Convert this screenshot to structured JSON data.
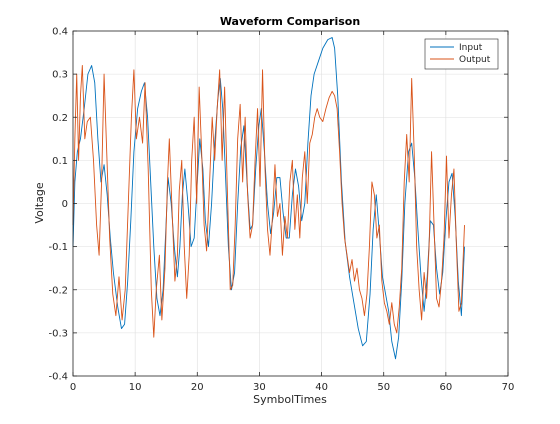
{
  "chart_data": {
    "type": "line",
    "title": "Waveform Comparison",
    "xlabel": "SymbolTimes",
    "ylabel": "Voltage",
    "xlim": [
      0,
      70
    ],
    "ylim": [
      -0.4,
      0.4
    ],
    "xticks": [
      0,
      10,
      20,
      30,
      40,
      50,
      60,
      70
    ],
    "xtick_labels": [
      "0",
      "10",
      "20",
      "30",
      "40",
      "50",
      "60",
      "70"
    ],
    "yticks": [
      -0.4,
      -0.3,
      -0.2,
      -0.1,
      0,
      0.1,
      0.2,
      0.3,
      0.4
    ],
    "ytick_labels": [
      "-0.4",
      "-0.3",
      "-0.2",
      "-0.1",
      "0",
      "0.1",
      "0.2",
      "0.3",
      "0.4"
    ],
    "grid": true,
    "legend_position": "top-right",
    "series": [
      {
        "name": "Input",
        "color": "#0072BD",
        "points": [
          [
            0,
            -0.1
          ],
          [
            0.3,
            0.05
          ],
          [
            0.7,
            0.12
          ],
          [
            1.2,
            0.15
          ],
          [
            1.8,
            0.22
          ],
          [
            2.4,
            0.3
          ],
          [
            3.0,
            0.32
          ],
          [
            3.5,
            0.28
          ],
          [
            4.0,
            0.15
          ],
          [
            4.5,
            0.05
          ],
          [
            5.0,
            0.09
          ],
          [
            5.5,
            0.02
          ],
          [
            6.0,
            -0.08
          ],
          [
            6.5,
            -0.16
          ],
          [
            7.2,
            -0.24
          ],
          [
            7.8,
            -0.29
          ],
          [
            8.3,
            -0.28
          ],
          [
            8.8,
            -0.18
          ],
          [
            9.3,
            -0.04
          ],
          [
            9.8,
            0.12
          ],
          [
            10.4,
            0.22
          ],
          [
            11.0,
            0.26
          ],
          [
            11.5,
            0.28
          ],
          [
            12.0,
            0.2
          ],
          [
            12.5,
            0.05
          ],
          [
            13.0,
            -0.1
          ],
          [
            13.5,
            -0.22
          ],
          [
            14.0,
            -0.26
          ],
          [
            14.5,
            -0.2
          ],
          [
            15.0,
            -0.04
          ],
          [
            15.3,
            0.06
          ],
          [
            15.8,
            0.0
          ],
          [
            16.3,
            -0.1
          ],
          [
            16.8,
            -0.17
          ],
          [
            17.2,
            -0.1
          ],
          [
            17.6,
            0.02
          ],
          [
            18.0,
            0.08
          ],
          [
            18.5,
            0.0
          ],
          [
            19.0,
            -0.1
          ],
          [
            19.5,
            -0.08
          ],
          [
            20.0,
            0.05
          ],
          [
            20.4,
            0.15
          ],
          [
            20.9,
            0.08
          ],
          [
            21.3,
            -0.04
          ],
          [
            21.8,
            -0.1
          ],
          [
            22.3,
            0.0
          ],
          [
            22.8,
            0.14
          ],
          [
            23.3,
            0.24
          ],
          [
            23.7,
            0.29
          ],
          [
            24.1,
            0.22
          ],
          [
            24.5,
            0.08
          ],
          [
            25.0,
            -0.1
          ],
          [
            25.5,
            -0.2
          ],
          [
            26.0,
            -0.16
          ],
          [
            26.5,
            0.0
          ],
          [
            27.0,
            0.13
          ],
          [
            27.5,
            0.18
          ],
          [
            28.0,
            0.05
          ],
          [
            28.5,
            -0.06
          ],
          [
            28.9,
            -0.05
          ],
          [
            29.4,
            0.08
          ],
          [
            29.9,
            0.18
          ],
          [
            30.3,
            0.22
          ],
          [
            30.8,
            0.12
          ],
          [
            31.3,
            0.0
          ],
          [
            31.8,
            -0.07
          ],
          [
            32.3,
            -0.02
          ],
          [
            32.8,
            0.06
          ],
          [
            33.3,
            0.06
          ],
          [
            33.8,
            -0.02
          ],
          [
            34.3,
            -0.08
          ],
          [
            34.8,
            -0.08
          ],
          [
            35.3,
            0.02
          ],
          [
            35.8,
            0.08
          ],
          [
            36.3,
            0.04
          ],
          [
            36.8,
            -0.04
          ],
          [
            37.3,
            0.0
          ],
          [
            37.8,
            0.14
          ],
          [
            38.3,
            0.25
          ],
          [
            38.8,
            0.3
          ],
          [
            39.5,
            0.33
          ],
          [
            40.2,
            0.36
          ],
          [
            41.0,
            0.38
          ],
          [
            41.7,
            0.385
          ],
          [
            42.1,
            0.36
          ],
          [
            42.6,
            0.25
          ],
          [
            43.2,
            0.05
          ],
          [
            43.8,
            -0.09
          ],
          [
            44.5,
            -0.17
          ],
          [
            45.2,
            -0.23
          ],
          [
            45.9,
            -0.29
          ],
          [
            46.6,
            -0.33
          ],
          [
            47.2,
            -0.32
          ],
          [
            47.8,
            -0.21
          ],
          [
            48.3,
            -0.06
          ],
          [
            48.8,
            0.02
          ],
          [
            49.3,
            -0.07
          ],
          [
            49.8,
            -0.17
          ],
          [
            50.3,
            -0.21
          ],
          [
            50.8,
            -0.25
          ],
          [
            51.3,
            -0.32
          ],
          [
            51.9,
            -0.36
          ],
          [
            52.4,
            -0.31
          ],
          [
            52.9,
            -0.18
          ],
          [
            53.4,
            0.0
          ],
          [
            54.0,
            0.12
          ],
          [
            54.5,
            0.14
          ],
          [
            55.0,
            0.06
          ],
          [
            55.5,
            -0.06
          ],
          [
            56.0,
            -0.17
          ],
          [
            56.5,
            -0.25
          ],
          [
            57.0,
            -0.17
          ],
          [
            57.5,
            -0.04
          ],
          [
            58.0,
            -0.05
          ],
          [
            58.5,
            -0.15
          ],
          [
            59.0,
            -0.21
          ],
          [
            59.5,
            -0.16
          ],
          [
            60.0,
            -0.04
          ],
          [
            60.5,
            0.05
          ],
          [
            61.0,
            0.07
          ],
          [
            61.5,
            -0.03
          ],
          [
            62.0,
            -0.18
          ],
          [
            62.5,
            -0.26
          ],
          [
            63.0,
            -0.1
          ]
        ]
      },
      {
        "name": "Output",
        "color": "#D95319",
        "points": [
          [
            0,
            -0.05
          ],
          [
            0.3,
            0.15
          ],
          [
            0.6,
            0.3
          ],
          [
            0.9,
            0.1
          ],
          [
            1.2,
            0.25
          ],
          [
            1.5,
            0.32
          ],
          [
            1.9,
            0.15
          ],
          [
            2.3,
            0.19
          ],
          [
            2.8,
            0.2
          ],
          [
            3.3,
            0.1
          ],
          [
            3.8,
            -0.05
          ],
          [
            4.2,
            -0.12
          ],
          [
            4.6,
            0.05
          ],
          [
            5.0,
            0.3
          ],
          [
            5.4,
            0.13
          ],
          [
            5.9,
            -0.08
          ],
          [
            6.4,
            -0.21
          ],
          [
            6.9,
            -0.26
          ],
          [
            7.4,
            -0.17
          ],
          [
            7.9,
            -0.27
          ],
          [
            8.4,
            -0.2
          ],
          [
            8.9,
            0.0
          ],
          [
            9.4,
            0.2
          ],
          [
            9.8,
            0.31
          ],
          [
            10.2,
            0.15
          ],
          [
            10.7,
            0.2
          ],
          [
            11.2,
            0.14
          ],
          [
            11.6,
            0.28
          ],
          [
            12.1,
            0.08
          ],
          [
            12.6,
            -0.2
          ],
          [
            13.0,
            -0.31
          ],
          [
            13.4,
            -0.2
          ],
          [
            13.9,
            -0.12
          ],
          [
            14.3,
            -0.27
          ],
          [
            14.8,
            -0.15
          ],
          [
            15.2,
            0.05
          ],
          [
            15.5,
            0.15
          ],
          [
            15.9,
            0.0
          ],
          [
            16.4,
            -0.18
          ],
          [
            16.8,
            -0.12
          ],
          [
            17.1,
            0.03
          ],
          [
            17.5,
            0.1
          ],
          [
            17.9,
            -0.1
          ],
          [
            18.3,
            -0.22
          ],
          [
            18.7,
            -0.12
          ],
          [
            19.1,
            0.1
          ],
          [
            19.5,
            0.2
          ],
          [
            19.9,
            0.0
          ],
          [
            20.3,
            0.27
          ],
          [
            20.7,
            0.12
          ],
          [
            21.1,
            -0.05
          ],
          [
            21.5,
            -0.11
          ],
          [
            21.9,
            0.02
          ],
          [
            22.4,
            0.2
          ],
          [
            22.8,
            0.1
          ],
          [
            23.2,
            0.22
          ],
          [
            23.6,
            0.31
          ],
          [
            24.0,
            0.1
          ],
          [
            24.4,
            0.27
          ],
          [
            24.8,
            0.05
          ],
          [
            25.3,
            -0.2
          ],
          [
            25.7,
            -0.19
          ],
          [
            26.1,
            -0.05
          ],
          [
            26.5,
            0.15
          ],
          [
            26.9,
            0.23
          ],
          [
            27.3,
            0.05
          ],
          [
            27.7,
            0.2
          ],
          [
            28.1,
            0.02
          ],
          [
            28.5,
            -0.08
          ],
          [
            28.9,
            -0.05
          ],
          [
            29.3,
            0.1
          ],
          [
            29.7,
            0.22
          ],
          [
            30.1,
            0.04
          ],
          [
            30.5,
            0.31
          ],
          [
            30.9,
            0.08
          ],
          [
            31.3,
            -0.06
          ],
          [
            31.7,
            -0.12
          ],
          [
            32.1,
            -0.03
          ],
          [
            32.5,
            0.09
          ],
          [
            32.9,
            -0.03
          ],
          [
            33.3,
            0.0
          ],
          [
            33.7,
            -0.12
          ],
          [
            34.1,
            -0.03
          ],
          [
            34.5,
            -0.08
          ],
          [
            34.9,
            0.05
          ],
          [
            35.3,
            0.1
          ],
          [
            35.7,
            -0.06
          ],
          [
            36.1,
            0.02
          ],
          [
            36.5,
            -0.08
          ],
          [
            36.9,
            0.06
          ],
          [
            37.3,
            0.12
          ],
          [
            37.7,
            0.0
          ],
          [
            38.1,
            0.14
          ],
          [
            38.5,
            0.16
          ],
          [
            38.9,
            0.2
          ],
          [
            39.3,
            0.22
          ],
          [
            39.7,
            0.2
          ],
          [
            40.2,
            0.19
          ],
          [
            40.7,
            0.22
          ],
          [
            41.2,
            0.245
          ],
          [
            41.7,
            0.26
          ],
          [
            42.1,
            0.25
          ],
          [
            42.5,
            0.22
          ],
          [
            42.9,
            0.12
          ],
          [
            43.3,
            0.0
          ],
          [
            43.7,
            -0.08
          ],
          [
            44.1,
            -0.12
          ],
          [
            44.5,
            -0.16
          ],
          [
            44.9,
            -0.13
          ],
          [
            45.3,
            -0.18
          ],
          [
            45.7,
            -0.15
          ],
          [
            46.1,
            -0.2
          ],
          [
            46.5,
            -0.22
          ],
          [
            46.9,
            -0.26
          ],
          [
            47.3,
            -0.21
          ],
          [
            47.7,
            -0.1
          ],
          [
            48.1,
            0.05
          ],
          [
            48.5,
            0.02
          ],
          [
            48.9,
            -0.08
          ],
          [
            49.3,
            -0.05
          ],
          [
            49.7,
            -0.18
          ],
          [
            50.1,
            -0.23
          ],
          [
            50.5,
            -0.25
          ],
          [
            50.9,
            -0.28
          ],
          [
            51.3,
            -0.23
          ],
          [
            51.7,
            -0.28
          ],
          [
            52.1,
            -0.3
          ],
          [
            52.5,
            -0.24
          ],
          [
            52.9,
            -0.15
          ],
          [
            53.3,
            0.05
          ],
          [
            53.7,
            0.16
          ],
          [
            54.1,
            0.05
          ],
          [
            54.5,
            0.29
          ],
          [
            54.9,
            0.12
          ],
          [
            55.3,
            -0.1
          ],
          [
            55.7,
            -0.2
          ],
          [
            56.1,
            -0.27
          ],
          [
            56.5,
            -0.16
          ],
          [
            56.9,
            -0.22
          ],
          [
            57.3,
            -0.1
          ],
          [
            57.7,
            0.12
          ],
          [
            58.1,
            -0.05
          ],
          [
            58.5,
            -0.22
          ],
          [
            58.9,
            -0.24
          ],
          [
            59.3,
            -0.18
          ],
          [
            59.7,
            -0.08
          ],
          [
            60.1,
            0.11
          ],
          [
            60.5,
            -0.08
          ],
          [
            60.9,
            0.02
          ],
          [
            61.3,
            0.08
          ],
          [
            61.7,
            -0.1
          ],
          [
            62.1,
            -0.25
          ],
          [
            62.5,
            -0.23
          ],
          [
            63.0,
            -0.05
          ]
        ]
      }
    ]
  }
}
